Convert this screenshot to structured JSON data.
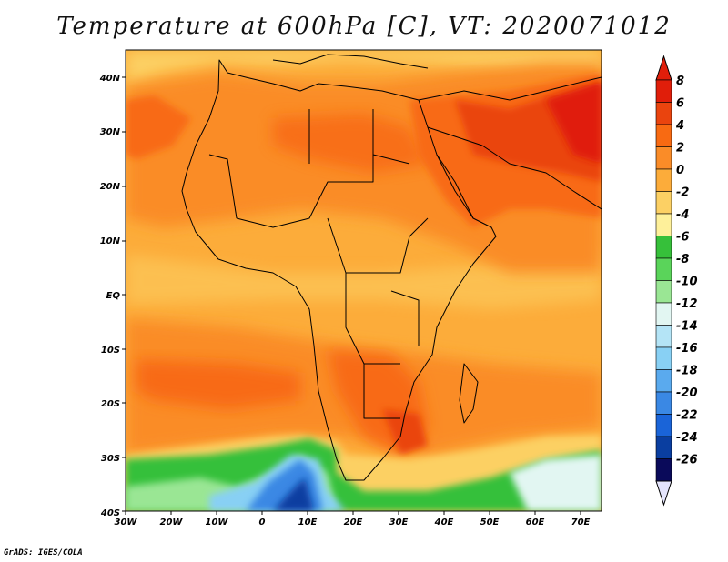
{
  "title": "Temperature at 600hPa [C], VT: 2020071012",
  "credit": "GrADS: IGES/COLA",
  "map": {
    "lon_range": [
      -30,
      75
    ],
    "lat_range": [
      -40,
      45
    ],
    "x_ticks": [
      "30W",
      "20W",
      "10W",
      "0",
      "10E",
      "20E",
      "30E",
      "40E",
      "50E",
      "60E",
      "70E"
    ],
    "y_ticks": [
      "40N",
      "30N",
      "20N",
      "10N",
      "EQ",
      "10S",
      "20S",
      "30S",
      "40S"
    ],
    "features": [
      {
        "name": "warm-core-arabia-iran",
        "level": 6
      },
      {
        "name": "warm-anomaly-atlantic-west",
        "level": 4
      },
      {
        "name": "warm-band-south-atlantic",
        "level": 4
      },
      {
        "name": "warm-band-southern-africa",
        "level": 4
      },
      {
        "name": "cold-southern-ocean",
        "level": -22
      }
    ]
  },
  "colorbar": {
    "labels": [
      "8",
      "6",
      "4",
      "2",
      "0",
      "-2",
      "-4",
      "-6",
      "-8",
      "-10",
      "-12",
      "-14",
      "-16",
      "-18",
      "-20",
      "-22",
      "-24",
      "-26"
    ],
    "colors": [
      "#e01e0a",
      "#ea440e",
      "#f86a12",
      "#fa8c28",
      "#fcac3a",
      "#fcd064",
      "#fef09a",
      "#36c03a",
      "#5ad45a",
      "#9ae694",
      "#e2f6f2",
      "#b4e4f6",
      "#88d0f4",
      "#5aaaee",
      "#3a88e4",
      "#1a64d8",
      "#0a3ea0",
      "#0a0a5a",
      "#e4e4fc"
    ],
    "cap_top_color": "#e01e0a",
    "cap_bottom_color": "#e4e4fc"
  }
}
